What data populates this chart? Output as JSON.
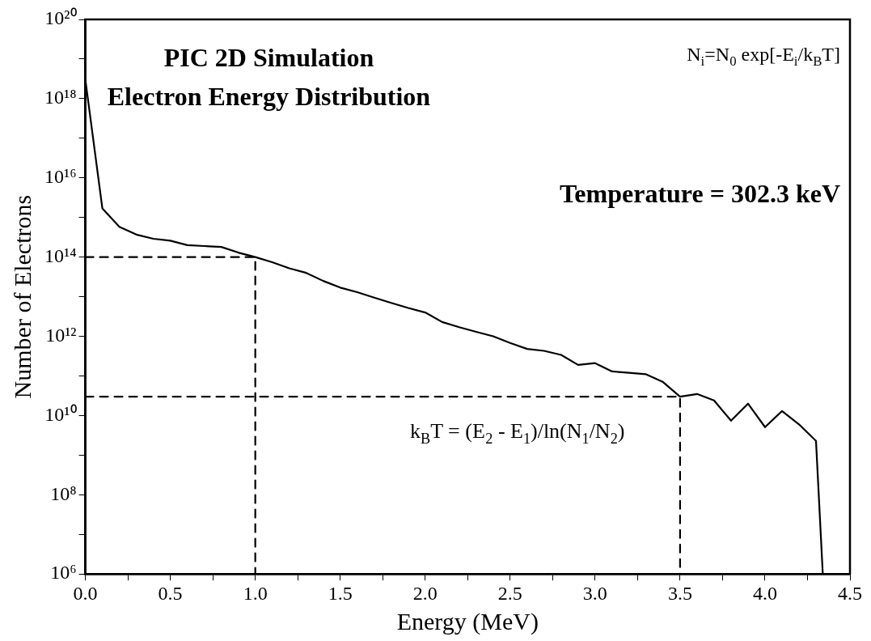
{
  "chart_data": {
    "type": "line",
    "title": "PIC 2D Simulation",
    "subtitle": "Electron Energy Distribution",
    "xlabel": "Energy (MeV)",
    "ylabel": "Number of Electrons",
    "log": "y",
    "grid": false,
    "legend": false,
    "marker": "none",
    "xlim": [
      0,
      4.5
    ],
    "ylim": [
      1000000.0,
      1e+20
    ],
    "xticks": [
      {
        "value": 0,
        "label": "0.0"
      },
      {
        "value": 0.25,
        "label": null
      },
      {
        "value": 0.5,
        "label": "0.5"
      },
      {
        "value": 0.75,
        "label": null
      },
      {
        "value": 1,
        "label": "1.0"
      },
      {
        "value": 1.25,
        "label": null
      },
      {
        "value": 1.5,
        "label": "1.5"
      },
      {
        "value": 1.75,
        "label": null
      },
      {
        "value": 2,
        "label": "2.0"
      },
      {
        "value": 2.25,
        "label": null
      },
      {
        "value": 2.5,
        "label": "2.5"
      },
      {
        "value": 2.75,
        "label": null
      },
      {
        "value": 3,
        "label": "3.0"
      },
      {
        "value": 3.25,
        "label": null
      },
      {
        "value": 3.5,
        "label": "3.5"
      },
      {
        "value": 3.75,
        "label": null
      },
      {
        "value": 4,
        "label": "4.0"
      },
      {
        "value": 4.25,
        "label": null
      },
      {
        "value": 4.5,
        "label": "4.5"
      }
    ],
    "yticks": [
      {
        "value": 1000000.0,
        "label": "10⁶"
      },
      {
        "value": 10000000.0,
        "label": null
      },
      {
        "value": 100000000.0,
        "label": "10⁸"
      },
      {
        "value": 1000000000.0,
        "label": null
      },
      {
        "value": 10000000000.0,
        "label": "10¹⁰"
      },
      {
        "value": 100000000000.0,
        "label": null
      },
      {
        "value": 1000000000000.0,
        "label": "10¹²"
      },
      {
        "value": 10000000000000.0,
        "label": null
      },
      {
        "value": 100000000000000.0,
        "label": "10¹⁴"
      },
      {
        "value": 1000000000000000.0,
        "label": null
      },
      {
        "value": 1e+16,
        "label": "10¹⁶"
      },
      {
        "value": 1e+17,
        "label": null
      },
      {
        "value": 1e+18,
        "label": "10¹⁸"
      },
      {
        "value": 1e+19,
        "label": null
      },
      {
        "value": 1e+20,
        "label": "10²⁰"
      }
    ],
    "series": [
      {
        "color": "#000000",
        "line_style": "solid",
        "x": [
          0,
          0.1,
          0.2,
          0.3,
          0.4,
          0.5,
          0.6,
          0.7,
          0.8,
          0.9,
          1.0,
          1.1,
          1.2,
          1.3,
          1.4,
          1.5,
          1.6,
          1.7,
          1.8,
          1.9,
          2.0,
          2.1,
          2.2,
          2.3,
          2.4,
          2.5,
          2.6,
          2.7,
          2.8,
          2.9,
          3.0,
          3.1,
          3.2,
          3.3,
          3.4,
          3.5,
          3.6,
          3.7,
          3.8,
          3.9,
          4.0,
          4.1,
          4.2,
          4.3,
          4.34
        ],
        "values": [
          3e+18,
          1700000000000000.0,
          580000000000000.0,
          370000000000000.0,
          290000000000000.0,
          260000000000000.0,
          200000000000000.0,
          190000000000000.0,
          180000000000000.0,
          130000000000000.0,
          100000000000000.0,
          74000000000000.0,
          52000000000000.0,
          40000000000000.0,
          25000000000000.0,
          17000000000000.0,
          13000000000000.0,
          9500000000000.0,
          7000000000000.0,
          5200000000000.0,
          4000000000000.0,
          2300000000000.0,
          1700000000000.0,
          1300000000000.0,
          1000000000000.0,
          680000000000.0,
          480000000000.0,
          430000000000.0,
          340000000000.0,
          190000000000.0,
          210000000000.0,
          130000000000.0,
          120000000000.0,
          110000000000.0,
          70000000000.0,
          30000000000.0,
          35000000000.0,
          24000000000.0,
          7400000000.0,
          20000000000.0,
          5100000000.0,
          13000000000.0,
          6000000000.0,
          2300000000.0,
          1000000.0
        ]
      },
      {
        "color": "#000000",
        "line_style": "dashed",
        "x": [
          0,
          1,
          1
        ],
        "values": [
          100000000000000.0,
          100000000000000.0,
          1000000.0
        ]
      },
      {
        "color": "#000000",
        "line_style": "dashed",
        "x": [
          0,
          3.5,
          3.5
        ],
        "values": [
          30000000000.0,
          30000000000.0,
          1000000.0
        ]
      }
    ],
    "annotations": [
      "N$_{i}$=N$_{0}$ exp[-E$_{i}$/k$_{B}$T]",
      "Temperature = 302.3 keV",
      "k$_{B}$T = (E$_{2}$ - E$_{1}$)/ln(N$_{1}$/N$_{2}$)"
    ]
  }
}
